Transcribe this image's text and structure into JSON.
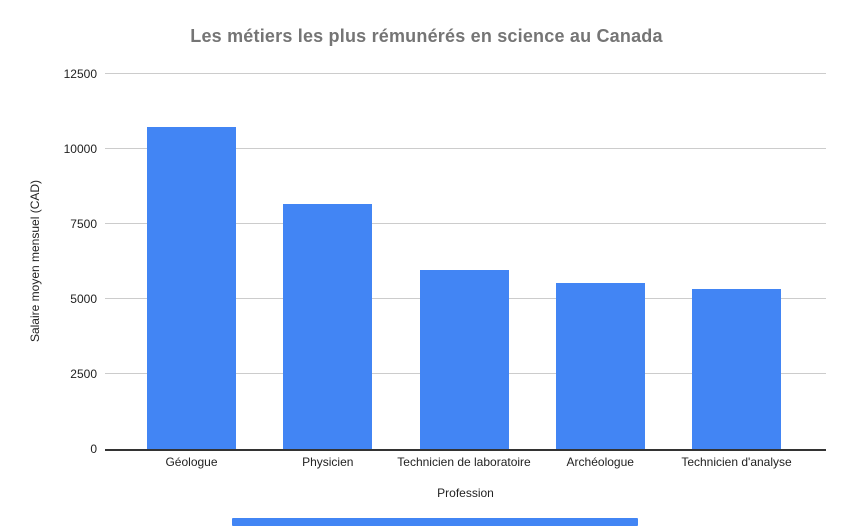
{
  "chart_data": {
    "type": "bar",
    "title": "Les métiers les plus rémunérés en science au Canada",
    "categories": [
      "Géologue",
      "Physicien",
      "Technicien de laboratoire",
      "Archéologue",
      "Technicien d'analyse"
    ],
    "values": [
      10730,
      8160,
      5970,
      5530,
      5350
    ],
    "xlabel": "Profession",
    "ylabel": "Salaire moyen mensuel (CAD)",
    "ylim": [
      0,
      12500
    ],
    "yticks": [
      0,
      2500,
      5000,
      7500,
      10000,
      12500
    ],
    "grid": true,
    "legend": "none",
    "colors": {
      "bar": "#4285F4",
      "title_text": "#757575",
      "axis_text": "#222222",
      "gridline": "#cccccc",
      "baseline": "#333333",
      "background": "#ffffff",
      "scrollbar": "#4285F4"
    }
  }
}
